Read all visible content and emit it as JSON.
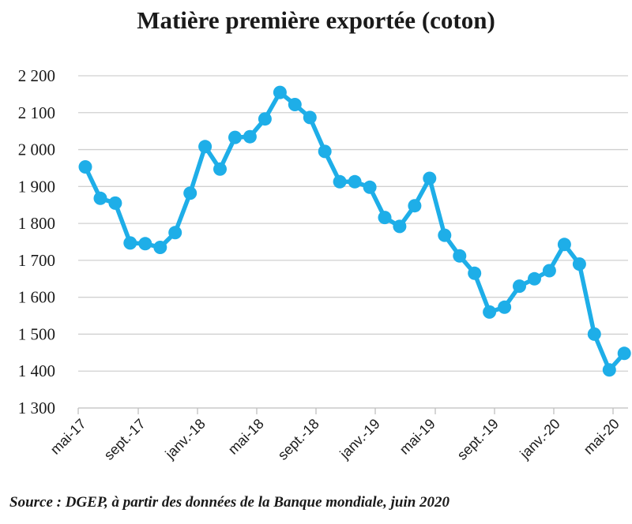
{
  "chart_data": {
    "type": "line",
    "title": "Matière première exportée (coton)",
    "xlabel": "",
    "ylabel": "",
    "ylim": [
      1300,
      2200
    ],
    "yticks": [
      "1 300",
      "1 400",
      "1 500",
      "1 600",
      "1 700",
      "1 800",
      "1 900",
      "2 000",
      "2 100",
      "2 200"
    ],
    "xtick_labels": [
      "mai-17",
      "sept.-17",
      "janv.-18",
      "mai-18",
      "sept.-18",
      "janv.-19",
      "mai-19",
      "sept.-19",
      "janv.-20",
      "mai-20"
    ],
    "grid": true,
    "series": [
      {
        "name": "coton",
        "color": "#1eaee8",
        "values": [
          1953,
          1868,
          1855,
          1747,
          1745,
          1735,
          1775,
          1882,
          2008,
          1947,
          2033,
          2035,
          2083,
          2155,
          2122,
          2087,
          1995,
          1913,
          1913,
          1898,
          1816,
          1792,
          1848,
          1922,
          1768,
          1712,
          1665,
          1560,
          1573,
          1630,
          1650,
          1672,
          1743,
          1690,
          1500,
          1403,
          1448
        ]
      }
    ]
  },
  "source": "Source : DGEP, à partir des données de la Banque mondiale, juin 2020"
}
